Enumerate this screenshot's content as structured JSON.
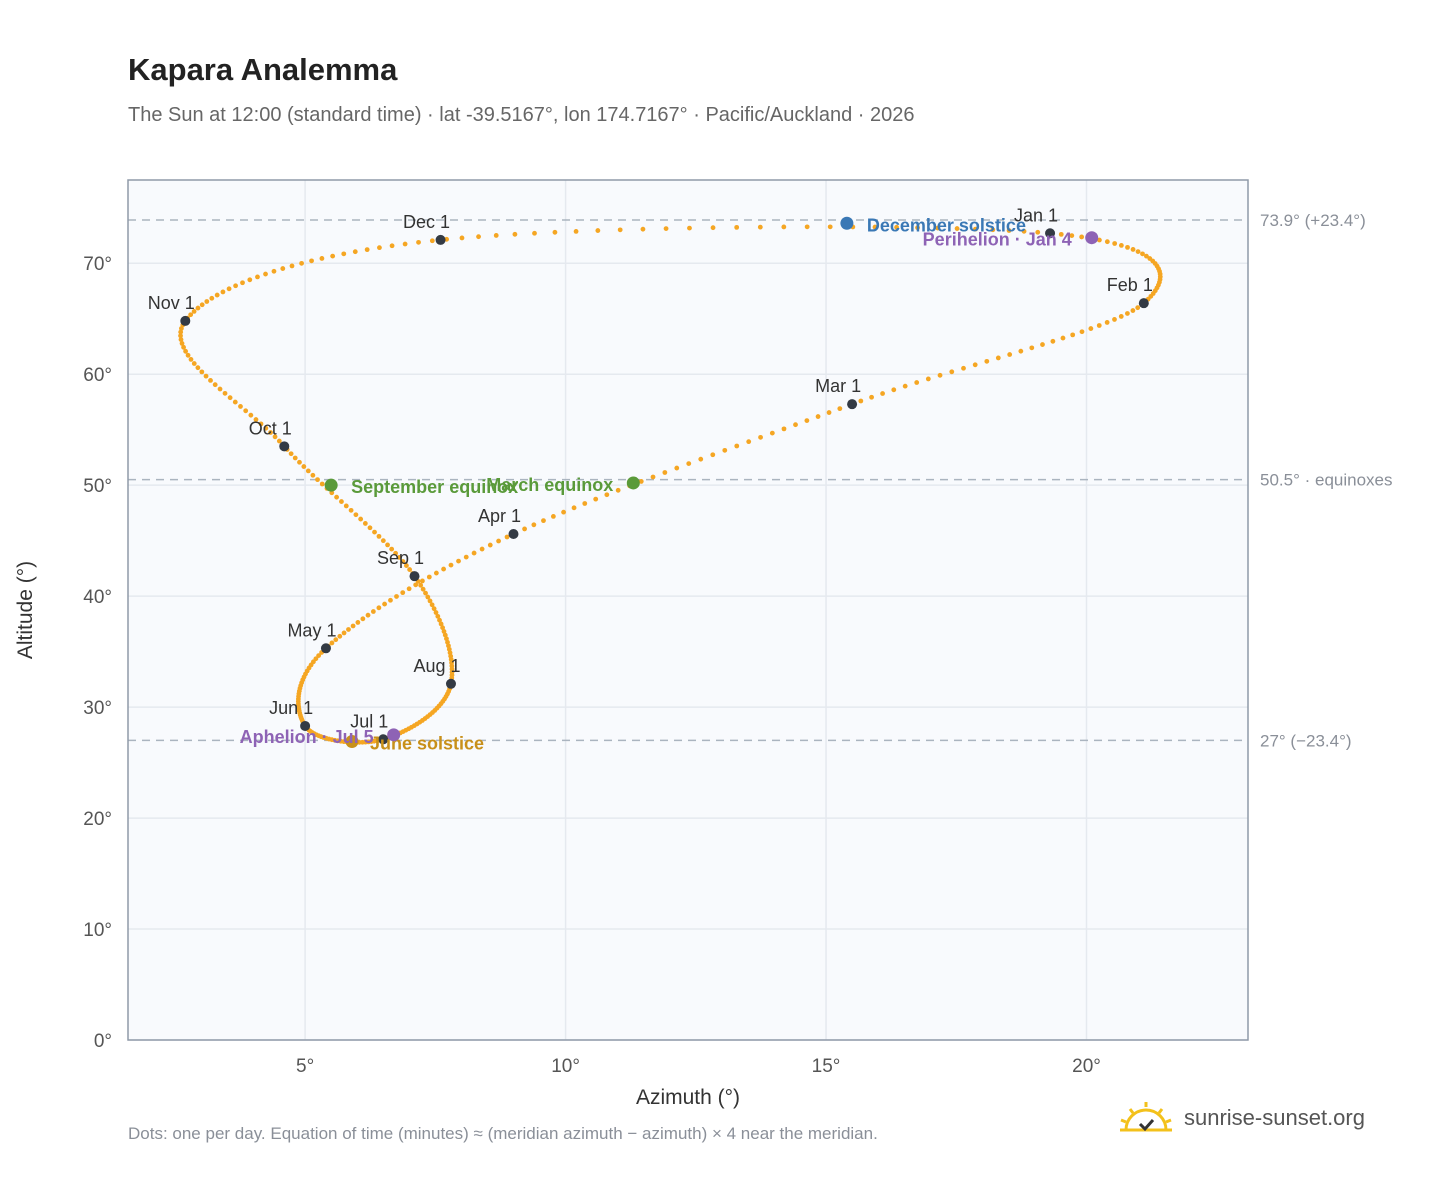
{
  "title": "Kapara Analemma",
  "subtitle": "The Sun at 12:00 (standard time) · lat -39.5167°, lon 174.7167° · Pacific/Auckland · 2026",
  "footnote": "Dots: one per day. Equation of time (minutes) ≈ (meridian azimuth − azimuth) × 4 near the meridian.",
  "brand": {
    "name": "sunrise-sunset.org",
    "icon": "sun-logo-icon"
  },
  "colors": {
    "curve": "#f5a623",
    "month_marker": "#333a44",
    "solstice_dec": "#3a78b5",
    "solstice_jun": "#c8901a",
    "equinox": "#5a9a3a",
    "apsis": "#8e63b5",
    "reference_line": "#aab4bf",
    "grid": "#e5e9ef",
    "plot_bg": "#f8fafd",
    "axis": "#8f9aa8"
  },
  "chart_data": {
    "type": "scatter",
    "xlabel": "Azimuth (°)",
    "ylabel": "Altitude (°)",
    "xlim": [
      1.6,
      23.1
    ],
    "ylim": [
      0,
      77.5
    ],
    "x_ticks": [
      5,
      10,
      15,
      20
    ],
    "x_tick_labels": [
      "5°",
      "10°",
      "15°",
      "20°"
    ],
    "y_ticks": [
      0,
      10,
      20,
      30,
      40,
      50,
      60,
      70
    ],
    "y_tick_labels": [
      "0°",
      "10°",
      "20°",
      "30°",
      "40°",
      "50°",
      "60°",
      "70°"
    ],
    "grid": true,
    "series": [
      {
        "points": [
          [
            19.3,
            72.7
          ],
          [
            21.1,
            66.4
          ],
          [
            15.5,
            57.3
          ],
          [
            9.0,
            45.6
          ],
          [
            5.4,
            35.3
          ],
          [
            5.0,
            28.3
          ],
          [
            6.5,
            27.1
          ],
          [
            7.8,
            32.1
          ],
          [
            7.1,
            41.8
          ],
          [
            4.6,
            53.5
          ],
          [
            2.7,
            64.8
          ],
          [
            7.6,
            72.1
          ],
          [
            19.3,
            72.7
          ]
        ]
      }
    ],
    "reference_lines": [
      {
        "y": 73.9,
        "label": "73.9° (+23.4°)"
      },
      {
        "y": 50.5,
        "label": "50.5° · equinoxes"
      },
      {
        "y": 27.0,
        "label": "27° (−23.4°)"
      }
    ],
    "month_markers": [
      {
        "label": "Jan 1",
        "x": 19.3,
        "y": 72.7
      },
      {
        "label": "Feb 1",
        "x": 21.1,
        "y": 66.4
      },
      {
        "label": "Mar 1",
        "x": 15.5,
        "y": 57.3
      },
      {
        "label": "Apr 1",
        "x": 9.0,
        "y": 45.6
      },
      {
        "label": "May 1",
        "x": 5.4,
        "y": 35.3
      },
      {
        "label": "Jun 1",
        "x": 5.0,
        "y": 28.3
      },
      {
        "label": "Jul 1",
        "x": 6.5,
        "y": 27.1
      },
      {
        "label": "Aug 1",
        "x": 7.8,
        "y": 32.1
      },
      {
        "label": "Sep 1",
        "x": 7.1,
        "y": 41.8
      },
      {
        "label": "Oct 1",
        "x": 4.6,
        "y": 53.5
      },
      {
        "label": "Nov 1",
        "x": 2.7,
        "y": 64.8
      },
      {
        "label": "Dec 1",
        "x": 7.6,
        "y": 72.1
      }
    ],
    "events": [
      {
        "label": "December solstice",
        "x": 15.4,
        "y": 73.6,
        "kind": "solstice_dec"
      },
      {
        "label": "Perihelion · Jan 4",
        "x": 20.1,
        "y": 72.3,
        "kind": "apsis"
      },
      {
        "label": "March equinox",
        "x": 11.3,
        "y": 50.2,
        "kind": "equinox"
      },
      {
        "label": "September equinox",
        "x": 5.5,
        "y": 50.0,
        "kind": "equinox"
      },
      {
        "label": "June solstice",
        "x": 5.9,
        "y": 26.9,
        "kind": "solstice_jun"
      },
      {
        "label": "Aphelion · Jul 5",
        "x": 6.7,
        "y": 27.5,
        "kind": "apsis"
      }
    ]
  }
}
